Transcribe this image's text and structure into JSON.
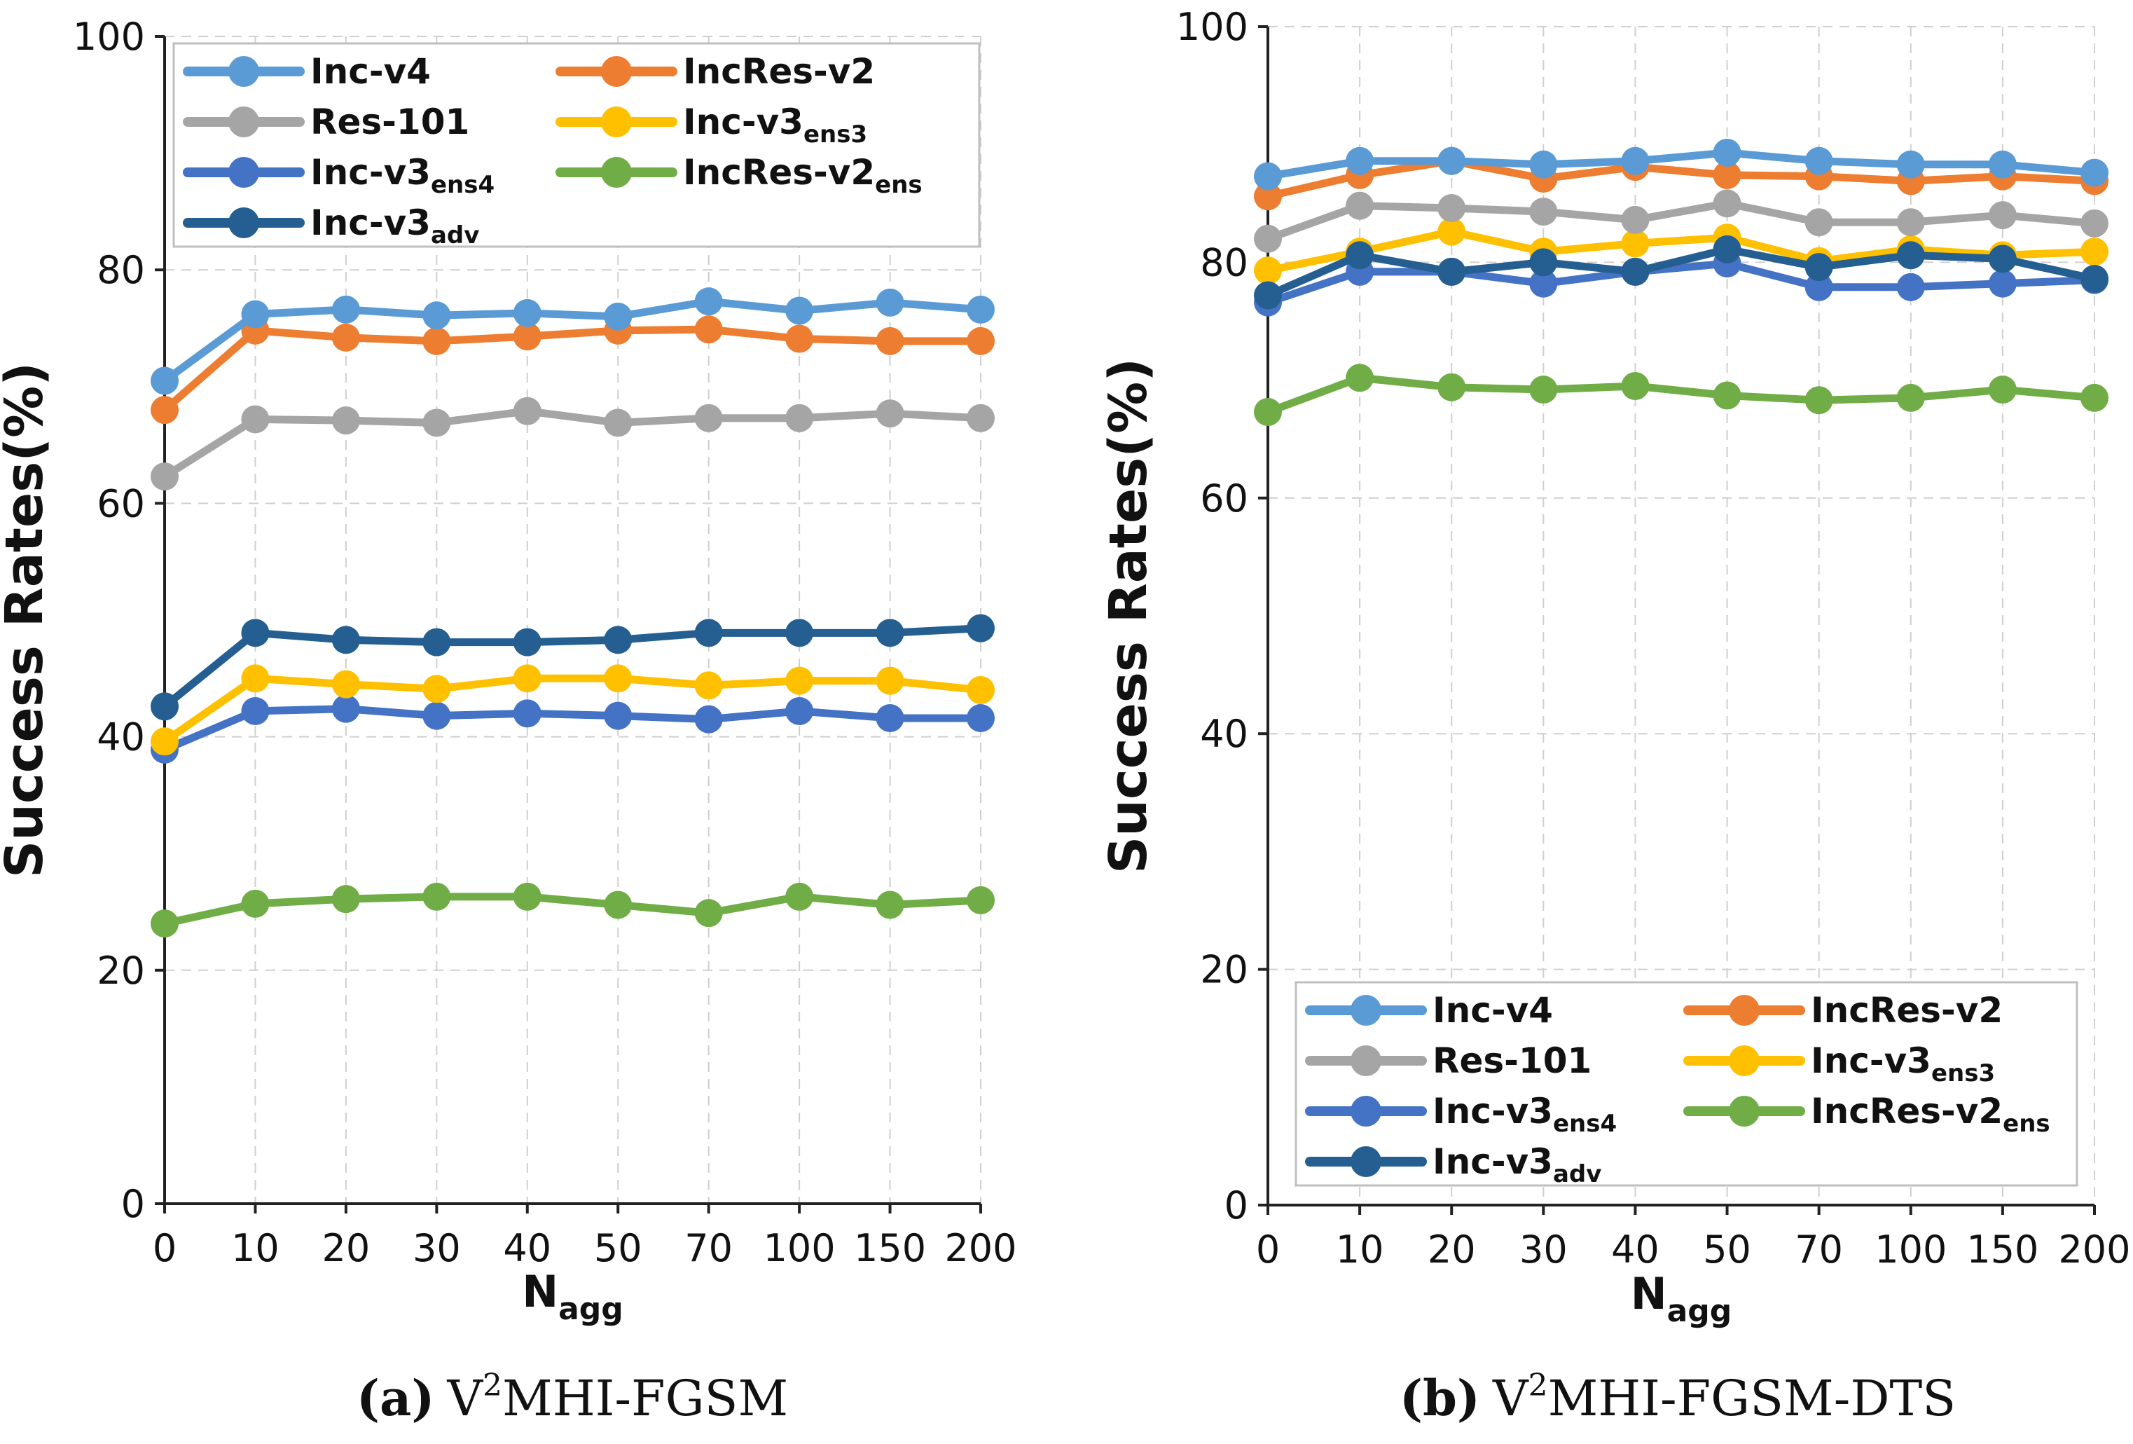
{
  "colors": {
    "Inc-v4": "#5b9bd5",
    "IncRes-v2": "#ed7d31",
    "Res-101": "#a5a5a5",
    "Inc-v3ens3": "#ffc000",
    "Inc-v3ens4": "#4472c4",
    "IncRes-v2ens": "#70ad47",
    "Inc-v3adv": "#255e91"
  },
  "chart_data": [
    {
      "type": "line",
      "ylabel": "Success Rates(%)",
      "xlabel_main": "N",
      "xlabel_sub": "agg",
      "ylim": [
        0,
        100
      ],
      "yticks": [
        "0",
        "20",
        "40",
        "60",
        "80",
        "100"
      ],
      "categories": [
        "0",
        "10",
        "20",
        "30",
        "40",
        "50",
        "70",
        "100",
        "150",
        "200"
      ],
      "legend_position": "top",
      "caption": {
        "label": "(a)",
        "main": "V",
        "sup": "2",
        "rest": "MHI-FGSM"
      },
      "series": [
        {
          "key": "Inc-v4",
          "name": "Inc-v4",
          "sub": "",
          "values": [
            70.5,
            76.2,
            76.6,
            76.1,
            76.3,
            76.0,
            77.3,
            76.5,
            77.2,
            76.6
          ]
        },
        {
          "key": "IncRes-v2",
          "name": "IncRes-v2",
          "sub": "",
          "values": [
            68.0,
            74.8,
            74.2,
            73.9,
            74.3,
            74.8,
            74.9,
            74.1,
            73.9,
            73.9
          ]
        },
        {
          "key": "Res-101",
          "name": "Res-101",
          "sub": "",
          "values": [
            62.3,
            67.2,
            67.1,
            66.9,
            67.9,
            66.9,
            67.3,
            67.3,
            67.7,
            67.3
          ]
        },
        {
          "key": "Inc-v3ens3",
          "name": "Inc-v3",
          "sub": "ens3",
          "values": [
            39.6,
            45.0,
            44.5,
            44.1,
            45.0,
            45.0,
            44.4,
            44.8,
            44.8,
            44.0
          ]
        },
        {
          "key": "Inc-v3ens4",
          "name": "Inc-v3",
          "sub": "ens4",
          "values": [
            38.9,
            42.2,
            42.4,
            41.8,
            42.0,
            41.8,
            41.5,
            42.2,
            41.6,
            41.6
          ]
        },
        {
          "key": "IncRes-v2ens",
          "name": "IncRes-v2",
          "sub": "ens",
          "values": [
            24.0,
            25.7,
            26.1,
            26.3,
            26.3,
            25.6,
            24.9,
            26.3,
            25.6,
            26.0
          ]
        },
        {
          "key": "Inc-v3adv",
          "name": "Inc-v3",
          "sub": "adv",
          "values": [
            42.6,
            48.9,
            48.3,
            48.1,
            48.1,
            48.3,
            48.9,
            48.9,
            48.9,
            49.3
          ]
        }
      ]
    },
    {
      "type": "line",
      "ylabel": "Success Rates(%)",
      "xlabel_main": "N",
      "xlabel_sub": "agg",
      "ylim": [
        0,
        100
      ],
      "yticks": [
        "0",
        "20",
        "40",
        "60",
        "80",
        "100"
      ],
      "categories": [
        "0",
        "10",
        "20",
        "30",
        "40",
        "50",
        "70",
        "100",
        "150",
        "200"
      ],
      "legend_position": "bottom",
      "caption": {
        "label": "(b)",
        "main": "V",
        "sup": "2",
        "rest": "MHI-FGSM-DTS"
      },
      "series": [
        {
          "key": "Inc-v4",
          "name": "Inc-v4",
          "sub": "",
          "values": [
            87.3,
            88.6,
            88.6,
            88.3,
            88.6,
            89.3,
            88.6,
            88.3,
            88.3,
            87.6
          ]
        },
        {
          "key": "IncRes-v2",
          "name": "IncRes-v2",
          "sub": "",
          "values": [
            85.6,
            87.4,
            88.6,
            87.1,
            88.1,
            87.4,
            87.3,
            86.9,
            87.3,
            86.9
          ]
        },
        {
          "key": "Res-101",
          "name": "Res-101",
          "sub": "",
          "values": [
            82.0,
            84.8,
            84.6,
            84.3,
            83.6,
            85.0,
            83.4,
            83.4,
            84.0,
            83.3
          ]
        },
        {
          "key": "Inc-v3ens3",
          "name": "Inc-v3",
          "sub": "ens3",
          "values": [
            79.3,
            80.9,
            82.6,
            80.9,
            81.6,
            82.1,
            80.1,
            81.1,
            80.6,
            80.9
          ]
        },
        {
          "key": "Inc-v3ens4",
          "name": "Inc-v3",
          "sub": "ens4",
          "values": [
            76.6,
            79.2,
            79.2,
            78.2,
            79.2,
            79.9,
            77.9,
            77.9,
            78.2,
            78.5
          ]
        },
        {
          "key": "IncRes-v2ens",
          "name": "IncRes-v2",
          "sub": "ens",
          "values": [
            67.3,
            70.2,
            69.4,
            69.2,
            69.5,
            68.7,
            68.3,
            68.5,
            69.2,
            68.5
          ]
        },
        {
          "key": "Inc-v3adv",
          "name": "Inc-v3",
          "sub": "adv",
          "values": [
            77.2,
            80.6,
            79.2,
            80.0,
            79.2,
            81.1,
            79.6,
            80.6,
            80.3,
            78.6
          ]
        }
      ]
    }
  ]
}
